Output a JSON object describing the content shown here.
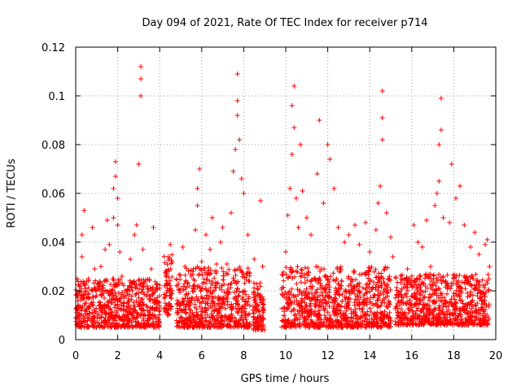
{
  "chart_data": {
    "type": "scatter",
    "title": "Day 094 of 2021, Rate Of TEC Index for receiver p714",
    "xlabel": "GPS time / hours",
    "ylabel": "ROTI / TECUs",
    "xlim": [
      0,
      20
    ],
    "ylim": [
      0,
      0.12
    ],
    "xticks": [
      0,
      2,
      4,
      6,
      8,
      10,
      12,
      14,
      16,
      18,
      20
    ],
    "xtick_labels": [
      "0",
      "2",
      "4",
      "6",
      "8",
      "10",
      "12",
      "14",
      "16",
      "18",
      "20"
    ],
    "yticks": [
      0,
      0.02,
      0.04,
      0.06,
      0.08,
      0.1,
      0.12
    ],
    "ytick_labels": [
      "0",
      "0.02",
      "0.04",
      "0.06",
      "0.08",
      "0.1",
      "0.12"
    ],
    "grid": true,
    "marker": "+",
    "marker_color": "#ff0000",
    "series": [
      {
        "name": "ROTI",
        "points": [
          [
            0.1,
            0.012
          ],
          [
            0.2,
            0.02
          ],
          [
            0.3,
            0.034
          ],
          [
            0.3,
            0.043
          ],
          [
            0.4,
            0.053
          ],
          [
            0.5,
            0.015
          ],
          [
            0.6,
            0.025
          ],
          [
            0.8,
            0.046
          ],
          [
            0.9,
            0.029
          ],
          [
            1.0,
            0.018
          ],
          [
            1.2,
            0.03
          ],
          [
            1.4,
            0.037
          ],
          [
            1.5,
            0.049
          ],
          [
            1.6,
            0.039
          ],
          [
            1.7,
            0.02
          ],
          [
            1.8,
            0.05
          ],
          [
            1.8,
            0.062
          ],
          [
            1.9,
            0.067
          ],
          [
            1.9,
            0.073
          ],
          [
            2.0,
            0.058
          ],
          [
            2.0,
            0.047
          ],
          [
            2.1,
            0.036
          ],
          [
            2.2,
            0.026
          ],
          [
            2.4,
            0.018
          ],
          [
            2.6,
            0.033
          ],
          [
            2.8,
            0.043
          ],
          [
            2.9,
            0.047
          ],
          [
            3.0,
            0.072
          ],
          [
            3.1,
            0.1
          ],
          [
            3.1,
            0.107
          ],
          [
            3.1,
            0.112
          ],
          [
            3.2,
            0.037
          ],
          [
            3.4,
            0.022
          ],
          [
            3.6,
            0.029
          ],
          [
            3.7,
            0.046
          ],
          [
            3.8,
            0.015
          ],
          [
            4.0,
            0.012
          ],
          [
            4.3,
            0.026
          ],
          [
            4.4,
            0.034
          ],
          [
            4.5,
            0.039
          ],
          [
            4.6,
            0.02
          ],
          [
            5.1,
            0.038
          ],
          [
            5.2,
            0.03
          ],
          [
            5.4,
            0.022
          ],
          [
            5.6,
            0.029
          ],
          [
            5.7,
            0.045
          ],
          [
            5.8,
            0.055
          ],
          [
            5.8,
            0.062
          ],
          [
            5.9,
            0.07
          ],
          [
            6.0,
            0.032
          ],
          [
            6.2,
            0.043
          ],
          [
            6.4,
            0.037
          ],
          [
            6.5,
            0.05
          ],
          [
            6.7,
            0.031
          ],
          [
            6.9,
            0.04
          ],
          [
            7.0,
            0.046
          ],
          [
            7.2,
            0.031
          ],
          [
            7.4,
            0.052
          ],
          [
            7.5,
            0.069
          ],
          [
            7.6,
            0.078
          ],
          [
            7.7,
            0.092
          ],
          [
            7.7,
            0.098
          ],
          [
            7.7,
            0.109
          ],
          [
            7.8,
            0.082
          ],
          [
            7.9,
            0.066
          ],
          [
            8.0,
            0.06
          ],
          [
            8.2,
            0.043
          ],
          [
            8.5,
            0.033
          ],
          [
            8.8,
            0.057
          ],
          [
            8.9,
            0.03
          ],
          [
            10.0,
            0.036
          ],
          [
            10.1,
            0.051
          ],
          [
            10.2,
            0.062
          ],
          [
            10.3,
            0.076
          ],
          [
            10.3,
            0.096
          ],
          [
            10.4,
            0.104
          ],
          [
            10.4,
            0.087
          ],
          [
            10.5,
            0.058
          ],
          [
            10.6,
            0.046
          ],
          [
            10.7,
            0.08
          ],
          [
            10.8,
            0.061
          ],
          [
            11.0,
            0.05
          ],
          [
            11.2,
            0.043
          ],
          [
            11.5,
            0.068
          ],
          [
            11.6,
            0.09
          ],
          [
            11.8,
            0.056
          ],
          [
            12.0,
            0.08
          ],
          [
            12.1,
            0.074
          ],
          [
            12.3,
            0.062
          ],
          [
            12.5,
            0.046
          ],
          [
            12.8,
            0.04
          ],
          [
            13.0,
            0.043
          ],
          [
            13.3,
            0.047
          ],
          [
            13.5,
            0.039
          ],
          [
            13.8,
            0.048
          ],
          [
            14.0,
            0.036
          ],
          [
            14.3,
            0.045
          ],
          [
            14.4,
            0.056
          ],
          [
            14.5,
            0.063
          ],
          [
            14.6,
            0.082
          ],
          [
            14.6,
            0.091
          ],
          [
            14.6,
            0.102
          ],
          [
            14.8,
            0.052
          ],
          [
            15.0,
            0.042
          ],
          [
            15.1,
            0.034
          ],
          [
            15.5,
            0.025
          ],
          [
            15.8,
            0.029
          ],
          [
            16.1,
            0.047
          ],
          [
            16.3,
            0.04
          ],
          [
            16.5,
            0.038
          ],
          [
            16.7,
            0.049
          ],
          [
            16.9,
            0.03
          ],
          [
            17.1,
            0.055
          ],
          [
            17.2,
            0.06
          ],
          [
            17.3,
            0.065
          ],
          [
            17.3,
            0.08
          ],
          [
            17.4,
            0.086
          ],
          [
            17.4,
            0.099
          ],
          [
            17.5,
            0.05
          ],
          [
            17.8,
            0.048
          ],
          [
            17.9,
            0.072
          ],
          [
            18.1,
            0.058
          ],
          [
            18.3,
            0.063
          ],
          [
            18.5,
            0.047
          ],
          [
            18.8,
            0.038
          ],
          [
            19.0,
            0.044
          ],
          [
            19.2,
            0.035
          ],
          [
            19.5,
            0.039
          ],
          [
            19.6,
            0.041
          ],
          [
            19.7,
            0.03
          ]
        ],
        "dense_bands": [
          {
            "x": [
              0.0,
              4.0
            ],
            "y": [
              0.005,
              0.025
            ]
          },
          {
            "x": [
              4.2,
              4.6
            ],
            "y": [
              0.01,
              0.035
            ]
          },
          {
            "x": [
              4.8,
              8.3
            ],
            "y": [
              0.005,
              0.03
            ]
          },
          {
            "x": [
              8.4,
              9.0
            ],
            "y": [
              0.004,
              0.024
            ]
          },
          {
            "x": [
              9.8,
              15.0
            ],
            "y": [
              0.005,
              0.03
            ]
          },
          {
            "x": [
              15.2,
              19.7
            ],
            "y": [
              0.006,
              0.027
            ]
          }
        ]
      }
    ]
  }
}
